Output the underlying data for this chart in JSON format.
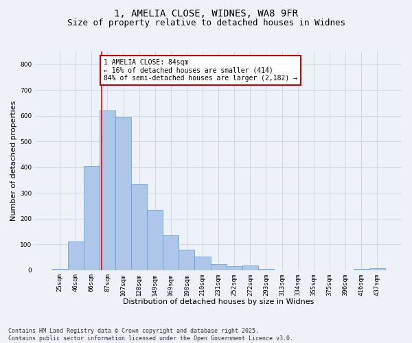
{
  "title_line1": "1, AMELIA CLOSE, WIDNES, WA8 9FR",
  "title_line2": "Size of property relative to detached houses in Widnes",
  "xlabel": "Distribution of detached houses by size in Widnes",
  "ylabel": "Number of detached properties",
  "categories": [
    "25sqm",
    "46sqm",
    "66sqm",
    "87sqm",
    "107sqm",
    "128sqm",
    "149sqm",
    "169sqm",
    "190sqm",
    "210sqm",
    "231sqm",
    "252sqm",
    "272sqm",
    "293sqm",
    "313sqm",
    "334sqm",
    "355sqm",
    "375sqm",
    "396sqm",
    "416sqm",
    "437sqm"
  ],
  "values": [
    5,
    110,
    405,
    620,
    595,
    335,
    235,
    135,
    80,
    53,
    22,
    15,
    18,
    5,
    0,
    0,
    0,
    0,
    0,
    5,
    8
  ],
  "bar_color": "#aec6e8",
  "bar_edge_color": "#5a9fd4",
  "bar_width": 1.0,
  "red_line_x": 2.62,
  "annotation_text": "1 AMELIA CLOSE: 84sqm\n← 16% of detached houses are smaller (414)\n84% of semi-detached houses are larger (2,182) →",
  "annotation_box_color": "#ffffff",
  "annotation_box_edge_color": "#cc0000",
  "ylim": [
    0,
    850
  ],
  "yticks": [
    0,
    100,
    200,
    300,
    400,
    500,
    600,
    700,
    800
  ],
  "grid_color": "#d0d8e8",
  "background_color": "#eef2f8",
  "footer_text": "Contains HM Land Registry data © Crown copyright and database right 2025.\nContains public sector information licensed under the Open Government Licence v3.0.",
  "title_fontsize": 10,
  "subtitle_fontsize": 9,
  "axis_label_fontsize": 8,
  "tick_fontsize": 6.5,
  "annotation_fontsize": 7,
  "footer_fontsize": 6
}
